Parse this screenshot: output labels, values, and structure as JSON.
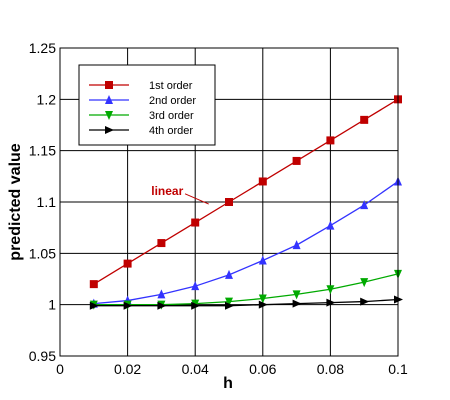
{
  "chart_data": {
    "type": "line",
    "title": "",
    "xlabel": "h",
    "ylabel": "predicted value",
    "xlim": [
      0,
      0.1
    ],
    "ylim": [
      0.95,
      1.25
    ],
    "x_ticks": [
      0,
      0.02,
      0.04,
      0.06,
      0.08,
      0.1
    ],
    "x_tick_labels": [
      "0",
      "0.02",
      "0.04",
      "0.06",
      "0.08",
      "0.1"
    ],
    "y_ticks": [
      0.95,
      1.0,
      1.05,
      1.1,
      1.15,
      1.2,
      1.25
    ],
    "y_tick_labels": [
      "0.95",
      "1",
      "1.05",
      "1.1",
      "1.15",
      "1.2",
      "1.25"
    ],
    "grid": true,
    "legend_position": "top-left",
    "x": [
      0.01,
      0.02,
      0.03,
      0.04,
      0.05,
      0.06,
      0.07,
      0.08,
      0.09,
      0.1
    ],
    "series": [
      {
        "name": "1st order",
        "color": "#c00000",
        "marker": "square",
        "values": [
          1.02,
          1.04,
          1.06,
          1.08,
          1.1,
          1.12,
          1.14,
          1.16,
          1.18,
          1.2
        ]
      },
      {
        "name": "2nd order",
        "color": "#3333ff",
        "marker": "triangle-up",
        "values": [
          1.001,
          1.004,
          1.01,
          1.018,
          1.029,
          1.043,
          1.058,
          1.077,
          1.097,
          1.12
        ]
      },
      {
        "name": "3rd order",
        "color": "#00aa00",
        "marker": "triangle-down",
        "values": [
          1.0,
          1.0,
          1.0,
          1.001,
          1.003,
          1.006,
          1.01,
          1.015,
          1.022,
          1.03
        ]
      },
      {
        "name": "4th order",
        "color": "#000000",
        "marker": "triangle-right",
        "values": [
          0.999,
          0.999,
          0.999,
          0.999,
          0.999,
          1.0,
          1.001,
          1.002,
          1.003,
          1.005
        ]
      }
    ],
    "annotations": [
      {
        "text": "linear",
        "x": 0.044,
        "y": 1.098,
        "color": "#c00000"
      }
    ]
  }
}
